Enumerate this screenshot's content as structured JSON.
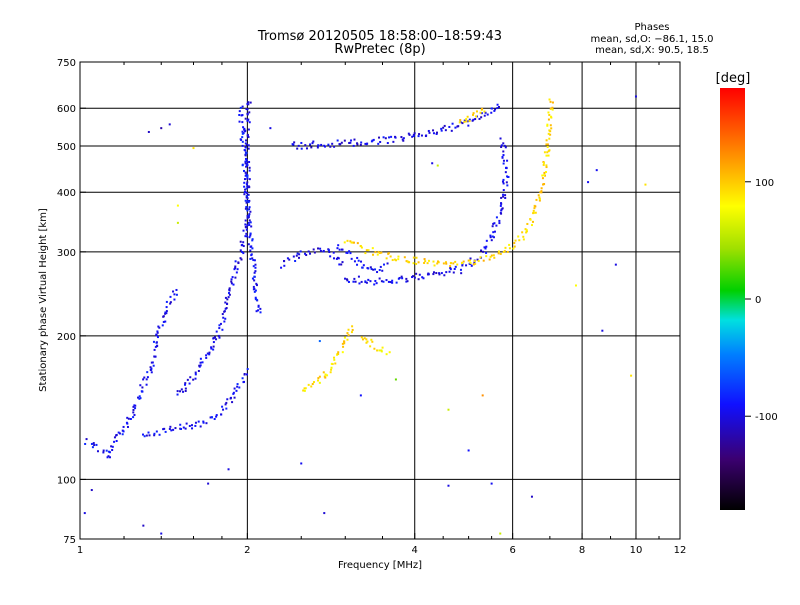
{
  "chart_data": {
    "type": "scatter",
    "title": "Tromsø 20120505 18:58:00–18:59:43",
    "subtitle": "RwPretec (8p)",
    "xlabel": "Frequency [MHz]",
    "ylabel": "Stationary phase Virtual Height [km]",
    "x_scale": "log",
    "y_scale": "log",
    "xlim": [
      1,
      12
    ],
    "ylim": [
      75,
      750
    ],
    "x_ticks": [
      1,
      2,
      4,
      6,
      8,
      10,
      12
    ],
    "y_ticks": [
      75,
      100,
      200,
      300,
      400,
      500,
      600,
      750
    ],
    "grid": true,
    "phases_box": {
      "title": "Phases",
      "line1": "mean, sd,O: −86.1, 15.0",
      "line2": "mean, sd,X:  90.5, 18.5"
    },
    "colorbar": {
      "label": "[deg]",
      "range": [
        -180,
        180
      ],
      "ticks": [
        100,
        0,
        -100
      ],
      "colormap": "rainbow"
    },
    "traces": [
      {
        "phase": -95,
        "points": [
          [
            1.03,
            120
          ],
          [
            1.06,
            118
          ],
          [
            1.1,
            115
          ],
          [
            1.13,
            112
          ],
          [
            1.16,
            122
          ],
          [
            1.19,
            126
          ],
          [
            1.22,
            130
          ],
          [
            1.25,
            140
          ],
          [
            1.28,
            150
          ],
          [
            1.31,
            160
          ],
          [
            1.34,
            170
          ],
          [
            1.36,
            185
          ],
          [
            1.38,
            200
          ],
          [
            1.41,
            215
          ],
          [
            1.44,
            230
          ],
          [
            1.47,
            240
          ],
          [
            1.5,
            250
          ]
        ]
      },
      {
        "phase": -95,
        "points": [
          [
            1.3,
            125
          ],
          [
            1.4,
            126
          ],
          [
            1.5,
            128
          ],
          [
            1.6,
            130
          ],
          [
            1.7,
            132
          ],
          [
            1.8,
            140
          ],
          [
            1.9,
            150
          ],
          [
            2.0,
            170
          ]
        ]
      },
      {
        "phase": -100,
        "points": [
          [
            1.5,
            150
          ],
          [
            1.6,
            165
          ],
          [
            1.7,
            185
          ],
          [
            1.8,
            210
          ],
          [
            1.85,
            240
          ],
          [
            1.9,
            270
          ],
          [
            1.95,
            300
          ],
          [
            2.0,
            350
          ],
          [
            2.0,
            420
          ],
          [
            2.0,
            500
          ],
          [
            2.0,
            580
          ],
          [
            2.02,
            630
          ]
        ]
      },
      {
        "phase": -92,
        "points": [
          [
            1.95,
            600
          ],
          [
            1.97,
            500
          ],
          [
            1.99,
            420
          ],
          [
            2.0,
            380
          ],
          [
            2.02,
            330
          ],
          [
            2.04,
            300
          ],
          [
            2.06,
            270
          ],
          [
            2.08,
            240
          ],
          [
            2.1,
            220
          ]
        ]
      },
      {
        "phase": -98,
        "points": [
          [
            2.3,
            280
          ],
          [
            2.4,
            290
          ],
          [
            2.5,
            295
          ],
          [
            2.6,
            300
          ],
          [
            2.7,
            300
          ],
          [
            2.8,
            300
          ],
          [
            2.9,
            290
          ],
          [
            3.0,
            280
          ]
        ]
      },
      {
        "phase": -100,
        "points": [
          [
            2.4,
            500
          ],
          [
            2.8,
            505
          ],
          [
            3.2,
            510
          ],
          [
            3.6,
            515
          ],
          [
            4.0,
            525
          ],
          [
            4.5,
            540
          ],
          [
            5.0,
            560
          ],
          [
            5.5,
            590
          ],
          [
            5.7,
            620
          ]
        ]
      },
      {
        "phase": -98,
        "points": [
          [
            3.0,
            265
          ],
          [
            3.3,
            260
          ],
          [
            3.6,
            262
          ],
          [
            4.0,
            265
          ],
          [
            4.4,
            270
          ],
          [
            4.8,
            275
          ],
          [
            5.2,
            290
          ],
          [
            5.5,
            320
          ],
          [
            5.7,
            360
          ],
          [
            5.8,
            400
          ],
          [
            5.85,
            440
          ],
          [
            5.8,
            480
          ],
          [
            5.75,
            520
          ]
        ]
      },
      {
        "phase": -95,
        "points": [
          [
            2.9,
            310
          ],
          [
            3.0,
            300
          ],
          [
            3.1,
            290
          ],
          [
            3.2,
            280
          ],
          [
            3.4,
            275
          ],
          [
            3.6,
            280
          ]
        ]
      },
      {
        "phase": 95,
        "points": [
          [
            3.0,
            320
          ],
          [
            3.2,
            305
          ],
          [
            3.5,
            295
          ],
          [
            3.8,
            290
          ],
          [
            4.2,
            285
          ],
          [
            4.6,
            283
          ],
          [
            5.0,
            285
          ],
          [
            5.4,
            290
          ],
          [
            5.8,
            300
          ],
          [
            6.2,
            320
          ],
          [
            6.5,
            350
          ],
          [
            6.7,
            390
          ],
          [
            6.85,
            440
          ],
          [
            6.95,
            500
          ],
          [
            7.0,
            560
          ],
          [
            7.05,
            630
          ]
        ]
      },
      {
        "phase": 90,
        "points": [
          [
            2.5,
            155
          ],
          [
            2.6,
            158
          ],
          [
            2.7,
            162
          ],
          [
            2.8,
            168
          ],
          [
            3.0,
            195
          ],
          [
            3.1,
            210
          ]
        ]
      },
      {
        "phase": 85,
        "points": [
          [
            3.2,
            200
          ],
          [
            3.3,
            195
          ],
          [
            3.4,
            190
          ],
          [
            3.5,
            185
          ],
          [
            3.6,
            182
          ]
        ]
      },
      {
        "phase": 100,
        "points": [
          [
            4.8,
            560
          ],
          [
            5.0,
            570
          ],
          [
            5.2,
            585
          ],
          [
            5.4,
            600
          ]
        ]
      }
    ],
    "scatter_points": [
      [
        1.05,
        95,
        -110
      ],
      [
        1.02,
        85,
        -100
      ],
      [
        1.3,
        80,
        -110
      ],
      [
        1.4,
        77,
        -100
      ],
      [
        1.4,
        545,
        -120
      ],
      [
        1.45,
        555,
        -105
      ],
      [
        1.33,
        535,
        -110
      ],
      [
        1.7,
        98,
        -105
      ],
      [
        1.85,
        105,
        -100
      ],
      [
        2.5,
        108,
        -95
      ],
      [
        2.2,
        545,
        -100
      ],
      [
        2.75,
        85,
        -105
      ],
      [
        3.7,
        162,
        30
      ],
      [
        4.6,
        97,
        -100
      ],
      [
        5.0,
        115,
        -90
      ],
      [
        5.5,
        98,
        -95
      ],
      [
        5.7,
        77,
        60
      ],
      [
        6.5,
        92,
        -110
      ],
      [
        7.8,
        255,
        80
      ],
      [
        8.7,
        205,
        -100
      ],
      [
        9.2,
        282,
        -100
      ],
      [
        9.8,
        165,
        90
      ],
      [
        10.0,
        635,
        -100
      ],
      [
        10.4,
        415,
        90
      ],
      [
        8.2,
        420,
        -95
      ],
      [
        8.5,
        445,
        -95
      ],
      [
        4.6,
        140,
        60
      ],
      [
        5.3,
        150,
        120
      ],
      [
        4.3,
        460,
        -100
      ],
      [
        4.4,
        455,
        60
      ],
      [
        1.5,
        375,
        80
      ],
      [
        1.5,
        345,
        60
      ],
      [
        1.6,
        495,
        90
      ],
      [
        3.2,
        150,
        -90
      ],
      [
        2.7,
        195,
        -60
      ]
    ]
  }
}
